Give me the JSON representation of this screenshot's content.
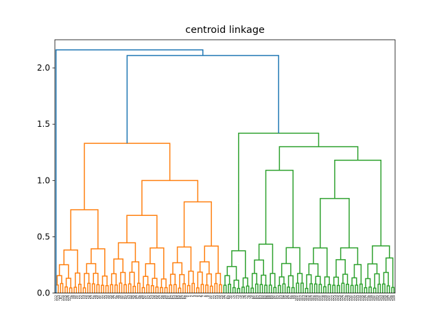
{
  "chart_data": {
    "type": "dendrogram",
    "title": "centroid linkage",
    "xlabel": "",
    "ylabel": "",
    "ylim": [
      0,
      2.25
    ],
    "yticks": [
      0.0,
      0.5,
      1.0,
      1.5,
      2.0
    ],
    "ytick_labels": [
      "0.0",
      "0.5",
      "1.0",
      "1.5",
      "2.0"
    ],
    "leaf_count": 150,
    "colors": {
      "cluster_orange": "#ff7f0e",
      "cluster_green": "#2ca02c",
      "above_threshold": "#1f77b4"
    },
    "leaf_labels": [
      "112",
      "113",
      "87",
      "114",
      "115",
      "116",
      "117",
      "18",
      "19",
      "20",
      "21",
      "22",
      "23",
      "24",
      "25",
      "26",
      "27",
      "28",
      "29",
      "30",
      "31",
      "32",
      "33",
      "34",
      "35",
      "36",
      "37",
      "38",
      "39",
      "40",
      "41",
      "42",
      "43",
      "44",
      "45",
      "46",
      "47",
      "48",
      "49",
      "50",
      "51",
      "52",
      "53",
      "54",
      "55",
      "56",
      "57",
      "58",
      "59",
      "60",
      "61",
      "62",
      "63",
      "64",
      "65",
      "66",
      "67",
      "68",
      "0",
      "1",
      "2",
      "3",
      "4",
      "5",
      "6",
      "7",
      "8",
      "9",
      "10",
      "11",
      "12",
      "13",
      "14",
      "15",
      "16",
      "17",
      "69",
      "70",
      "71",
      "72",
      "73",
      "74",
      "75",
      "76",
      "77",
      "78",
      "79",
      "80",
      "81",
      "82",
      "83",
      "84",
      "85",
      "86",
      "88",
      "89",
      "90",
      "91",
      "92",
      "93",
      "94",
      "95",
      "96",
      "97",
      "98",
      "99",
      "100",
      "101",
      "102",
      "103",
      "104",
      "105",
      "106",
      "107",
      "108",
      "109",
      "110",
      "111",
      "118",
      "119",
      "120",
      "121",
      "122",
      "123",
      "124",
      "125",
      "126",
      "127",
      "128",
      "129",
      "130",
      "131",
      "132",
      "133",
      "134",
      "135",
      "136",
      "137",
      "138",
      "139",
      "140",
      "141",
      "142",
      "143",
      "144",
      "145",
      "146",
      "147",
      "148",
      "149"
    ],
    "merges": [
      {
        "pos": [
          1,
          4
        ],
        "height": 0.05
      }
    ]
  }
}
